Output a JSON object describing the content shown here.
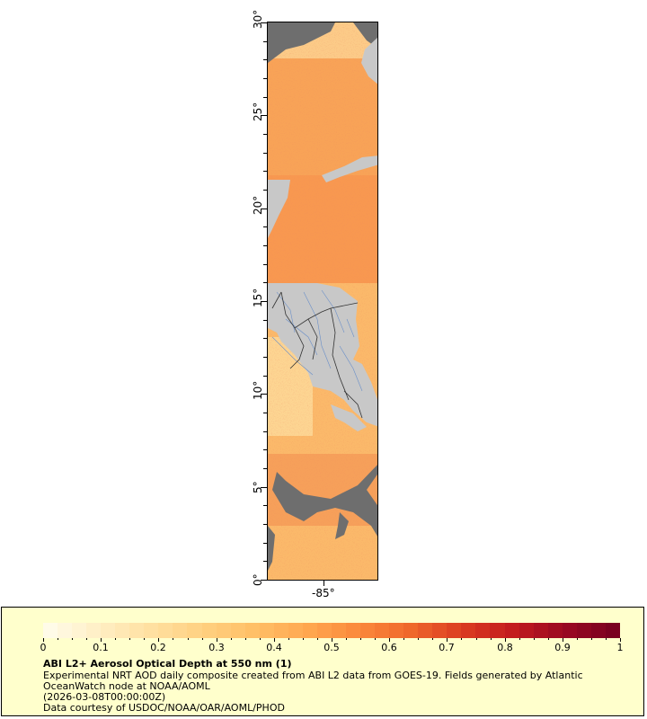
{
  "map": {
    "lat_ticks": [
      "0°",
      "5°",
      "10°",
      "15°",
      "20°",
      "25°",
      "30°"
    ],
    "lon_ticks": [
      "-85°"
    ],
    "colors": {
      "land": "#c8c8c8",
      "nodata": "#6e6e6e",
      "rivers": "#6a8fc8",
      "borders": "#333333"
    }
  },
  "legend": {
    "title": "ABI L2+ Aerosol Optical Depth at 550 nm (1)",
    "line1": "Experimental NRT AOD daily composite created from ABI L2 data from GOES-19. Fields generated by Atlantic",
    "line2": "OceanWatch node at NOAA/AOML",
    "line3": "(2026-03-08T00:00:00Z)",
    "line4": "Data courtesy of USDOC/NOAA/OAR/AOML/PHOD",
    "ticks": [
      "0",
      "0.1",
      "0.2",
      "0.3",
      "0.4",
      "0.5",
      "0.6",
      "0.7",
      "0.8",
      "0.9",
      "1"
    ],
    "range": [
      0,
      1
    ],
    "colormap": [
      "#fffbe8",
      "#ffeec2",
      "#ffe0a0",
      "#ffd080",
      "#ffbf66",
      "#ffa850",
      "#fb8a3c",
      "#f06a2c",
      "#dc3e22",
      "#c41c1e",
      "#9c0a22",
      "#7a0020"
    ]
  }
}
